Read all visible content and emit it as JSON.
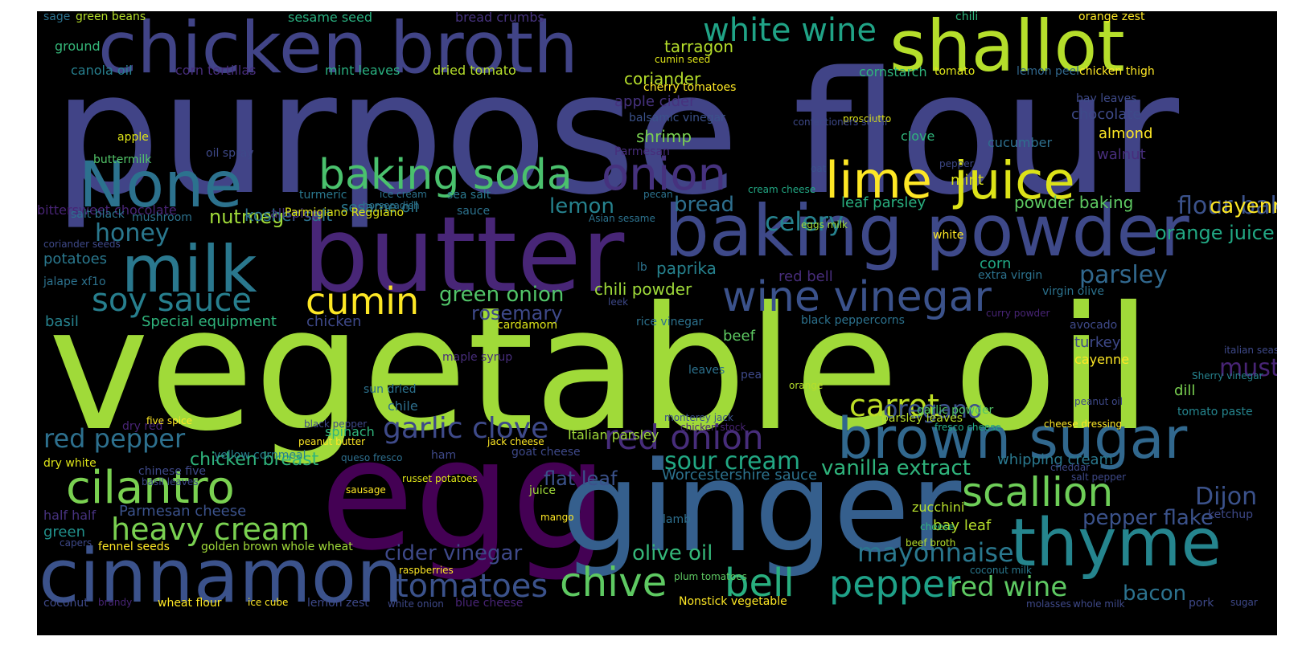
{
  "palette": {
    "background": "#000000",
    "frame": "#ffffff"
  },
  "words": [
    "purpose flour",
    "vegetable oil",
    "egg",
    "ginger",
    "butter",
    "chicken broth",
    "cinnamon",
    "baking powder",
    "shallot",
    "milk",
    "None",
    "brown sugar",
    "thyme",
    "juice",
    "lime",
    "baking soda",
    "onion",
    "wine vinegar",
    "cilantro",
    "white wine",
    "scallion",
    "red onion",
    "cumin",
    "heavy cream",
    "chive",
    "bell",
    "pepper",
    "soy sauce",
    "tomatoes",
    "red wine",
    "garlic clove",
    "sour cream",
    "red pepper",
    "mayonnaise",
    "green onion",
    "olive oil",
    "cider vinegar",
    "honey",
    "nutmeg",
    "vanilla extract",
    "carrot",
    "oregano",
    "celery",
    "Dijon",
    "mustard",
    "flour baking",
    "cayenne pepper",
    "orange juice",
    "parsley",
    "pepper flake",
    "bacon",
    "bread",
    "lemon",
    "rosemary",
    "Worcestershire sauce",
    "flat leaf",
    "chicken breast",
    "Parmesan cheese",
    "potatoes",
    "basil",
    "Special equipment",
    "chicken",
    "paprika",
    "chili powder",
    "shrimp",
    "coriander",
    "tarragon",
    "apple cider",
    "kosher salt",
    "allspice",
    "sesame oil",
    "leaf parsley",
    "powder baking",
    "mint",
    "chocolate",
    "almond",
    "walnut",
    "corn",
    "turkey",
    "cayenne",
    "dill",
    "bay leaf",
    "zucchini",
    "whipping cream",
    "tomato paste",
    "green",
    "half half",
    "sage",
    "green beans",
    "sesame seed",
    "bread crumbs",
    "chili",
    "orange zest",
    "ground",
    "canola oil",
    "corn tortillas",
    "mint leaves",
    "dried tomato",
    "cumin seed",
    "cherry tomatoes",
    "cornstarch",
    "tomato",
    "lemon peel",
    "chicken thigh",
    "bay leaves",
    "balsamic vinegar",
    "buttermilk",
    "oil spray",
    "Parmigiano Reggiano",
    "Parmesan",
    "apple",
    "bittersweet chocolate",
    "clove",
    "cucumber",
    "prosciutto",
    "confectioners sugar",
    "cream cheese",
    "eggs milk",
    "oat",
    "turmeric",
    "ice cream",
    "sea salt",
    "pecan",
    "horseradish",
    "sauce",
    "Asian sesame",
    "salt black",
    "mushroom",
    "coriander seeds",
    "jalape xf1o",
    "lb",
    "red bell",
    "extra virgin",
    "virgin olive",
    "leek",
    "rice vinegar",
    "black peppercorns",
    "curry powder",
    "avocado",
    "cardamom",
    "beef",
    "maple syrup",
    "leaves",
    "Italian parsley",
    "parsley leaves",
    "garlic powder",
    "Sherry vinegar",
    "italian seasoning",
    "dry red",
    "yellow cornmeal",
    "black pepper",
    "sun dried",
    "chile",
    "monterey jack",
    "pea",
    "orange",
    "peanut oil",
    "five spice",
    "jack cheese",
    "spinach",
    "peanut butter",
    "queso fresco",
    "ham",
    "goat cheese",
    "chicken stock",
    "fresco cheese",
    "cheese dressing",
    "dry white",
    "chinese five",
    "basil leaves",
    "russet potatoes",
    "cheddar",
    "salt pepper",
    "ketchup",
    "sausage",
    "juice",
    "mango",
    "lamb",
    "cheese",
    "fennel seeds",
    "golden brown whole wheat",
    "capers",
    "raspberries",
    "plum tomatoes",
    "beef broth",
    "coconut milk",
    "coconut",
    "brandy",
    "wheat flour",
    "ice cube",
    "lemon zest",
    "white onion",
    "blue cheese",
    "Nonstick vegetable",
    "molasses",
    "whole milk",
    "pork",
    "sugar",
    "white",
    "pepper"
  ]
}
